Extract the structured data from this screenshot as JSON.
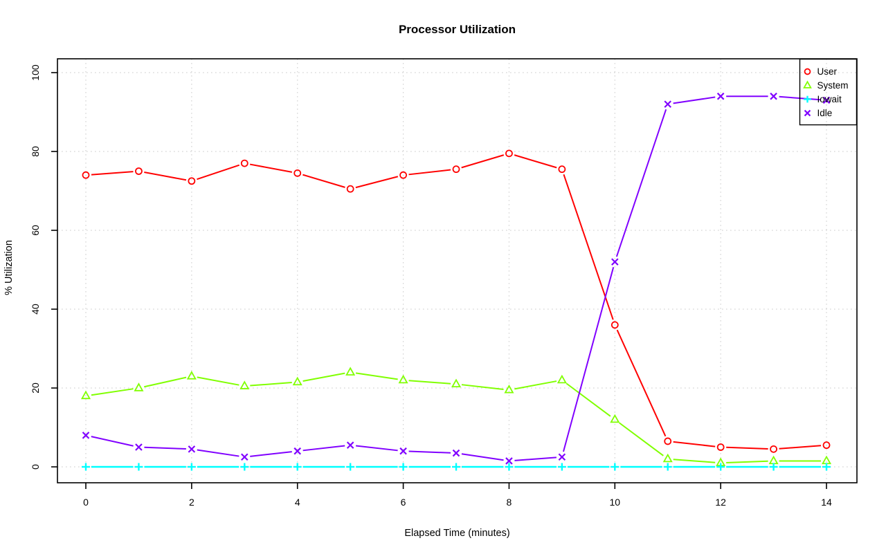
{
  "window": {
    "background": "#FFFFFF"
  },
  "chart_data": {
    "type": "line",
    "title": "Processor Utilization",
    "xlabel": "Elapsed Time (minutes)",
    "ylabel": "% Utilization",
    "x": [
      0,
      1,
      2,
      3,
      4,
      5,
      6,
      7,
      8,
      9,
      10,
      11,
      12,
      13,
      14
    ],
    "xlim": [
      0,
      14
    ],
    "ylim": [
      0,
      100
    ],
    "xticks": [
      0,
      2,
      4,
      6,
      8,
      10,
      12,
      14
    ],
    "yticks": [
      0,
      20,
      40,
      60,
      80,
      100
    ],
    "grid": "dotted",
    "grid_color": "#D3D3D3",
    "axis_color": "#000000",
    "legend_position": "top-right",
    "legend_entries": [
      "User",
      "System",
      "Iowait",
      "Idle"
    ],
    "series": [
      {
        "name": "User",
        "color": "#FF0000",
        "marker": "circle",
        "values": [
          74,
          75,
          72.5,
          77,
          74.5,
          70.5,
          74,
          75.5,
          79.5,
          75.5,
          36,
          6.5,
          5,
          4.5,
          5.5
        ]
      },
      {
        "name": "System",
        "color": "#80FF00",
        "marker": "triangle",
        "values": [
          18,
          20,
          23,
          20.5,
          21.5,
          24,
          22,
          21,
          19.5,
          22,
          12,
          2,
          1,
          1.5,
          1.5
        ]
      },
      {
        "name": "Iowait",
        "color": "#00FFFF",
        "marker": "plus",
        "values": [
          0,
          0,
          0,
          0,
          0,
          0,
          0,
          0,
          0,
          0,
          0,
          0,
          0,
          0,
          0
        ]
      },
      {
        "name": "Idle",
        "color": "#8000FF",
        "marker": "x",
        "values": [
          8,
          5,
          4.5,
          2.5,
          4,
          5.5,
          4,
          3.5,
          1.5,
          2.5,
          52,
          92,
          94,
          94,
          93
        ]
      }
    ]
  }
}
